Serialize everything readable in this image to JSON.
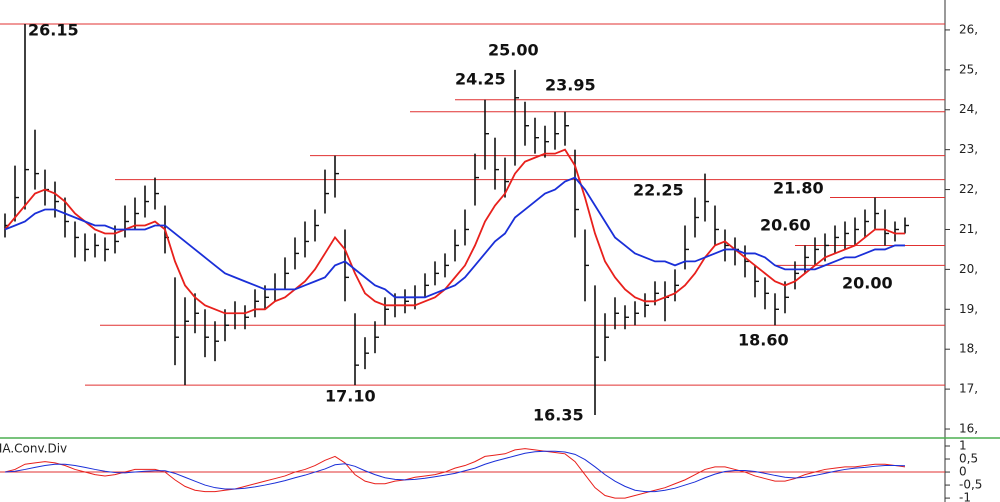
{
  "chart_data": [
    {
      "type": "ohlc",
      "high": [
        21.4,
        22.6,
        26.15,
        23.5,
        22.5,
        22.2,
        21.8,
        21.2,
        20.9,
        20.9,
        20.8,
        21.1,
        21.6,
        21.8,
        22.1,
        22.3,
        21.6,
        19.8,
        19.3,
        19.4,
        19.0,
        18.7,
        19.0,
        19.2,
        19.1,
        19.5,
        19.6,
        19.9,
        20.3,
        20.8,
        21.2,
        21.5,
        22.5,
        22.85,
        21.0,
        18.9,
        18.3,
        18.7,
        19.3,
        19.4,
        19.5,
        19.6,
        19.9,
        20.2,
        20.4,
        21.0,
        21.5,
        22.9,
        24.25,
        23.3,
        22.8,
        25.0,
        24.2,
        23.8,
        23.6,
        23.95,
        23.95,
        23.0,
        21.0,
        19.6,
        18.9,
        19.3,
        19.1,
        19.2,
        19.4,
        19.7,
        19.7,
        20.0,
        21.1,
        21.8,
        22.4,
        21.6,
        21.0,
        20.8,
        20.6,
        20.1,
        19.8,
        19.4,
        19.7,
        20.2,
        20.6,
        20.8,
        20.9,
        21.1,
        21.2,
        21.3,
        21.5,
        21.8,
        21.5,
        21.2,
        21.3
      ],
      "low": [
        20.8,
        21.2,
        21.5,
        22.0,
        21.6,
        21.3,
        20.8,
        20.3,
        20.2,
        20.3,
        20.2,
        20.4,
        20.8,
        21.0,
        21.3,
        21.5,
        20.4,
        17.6,
        17.1,
        18.4,
        17.8,
        17.7,
        18.2,
        18.5,
        18.5,
        18.8,
        19.0,
        19.2,
        19.5,
        20.0,
        20.3,
        20.7,
        21.4,
        21.8,
        19.2,
        17.1,
        17.5,
        17.9,
        18.6,
        18.8,
        18.9,
        19.0,
        19.3,
        19.6,
        19.8,
        20.2,
        20.6,
        21.6,
        22.5,
        22.0,
        21.8,
        22.6,
        23.1,
        22.9,
        22.8,
        23.0,
        23.1,
        20.8,
        19.2,
        16.35,
        17.7,
        18.5,
        18.5,
        18.6,
        18.8,
        19.1,
        18.7,
        19.2,
        20.0,
        20.8,
        21.2,
        20.6,
        20.2,
        20.1,
        19.8,
        19.3,
        19.0,
        18.6,
        18.9,
        19.5,
        19.9,
        20.1,
        20.2,
        20.4,
        20.5,
        20.6,
        20.8,
        21.0,
        20.6,
        20.7,
        20.9
      ],
      "close": [
        21.1,
        21.8,
        22.5,
        22.4,
        22.0,
        21.7,
        21.2,
        20.8,
        20.5,
        20.6,
        20.5,
        20.7,
        21.2,
        21.4,
        21.7,
        21.9,
        20.8,
        18.3,
        18.7,
        18.9,
        18.3,
        18.2,
        18.6,
        18.9,
        18.8,
        19.2,
        19.3,
        19.5,
        19.9,
        20.4,
        20.7,
        21.1,
        21.9,
        22.4,
        19.8,
        17.6,
        17.9,
        18.3,
        19.0,
        19.1,
        19.2,
        19.3,
        19.6,
        19.9,
        20.1,
        20.6,
        21.0,
        22.3,
        23.4,
        22.5,
        22.2,
        24.3,
        23.6,
        23.3,
        23.2,
        23.4,
        23.6,
        21.5,
        20.1,
        17.8,
        18.3,
        18.9,
        18.8,
        18.9,
        19.1,
        19.4,
        19.3,
        19.6,
        20.5,
        21.3,
        21.7,
        21.0,
        20.6,
        20.5,
        20.2,
        19.7,
        19.4,
        19.0,
        19.3,
        19.9,
        20.3,
        20.5,
        20.6,
        20.8,
        20.9,
        21.0,
        21.2,
        21.4,
        20.9,
        21.0,
        21.1
      ],
      "bar_color": "#111111",
      "series": [
        {
          "color": "#e8201c",
          "values": [
            21.0,
            21.3,
            21.6,
            21.9,
            22.0,
            21.9,
            21.7,
            21.4,
            21.2,
            21.0,
            20.9,
            20.9,
            21.0,
            21.1,
            21.1,
            21.2,
            21.0,
            20.2,
            19.6,
            19.3,
            19.1,
            19.0,
            18.9,
            18.9,
            18.9,
            19.0,
            19.0,
            19.2,
            19.3,
            19.5,
            19.7,
            20.0,
            20.4,
            20.8,
            20.5,
            19.9,
            19.4,
            19.2,
            19.1,
            19.1,
            19.1,
            19.1,
            19.2,
            19.3,
            19.5,
            19.8,
            20.1,
            20.6,
            21.2,
            21.6,
            21.9,
            22.4,
            22.7,
            22.8,
            22.9,
            22.9,
            23.0,
            22.6,
            21.8,
            20.9,
            20.2,
            19.8,
            19.5,
            19.3,
            19.2,
            19.2,
            19.3,
            19.4,
            19.6,
            19.9,
            20.3,
            20.6,
            20.7,
            20.5,
            20.3,
            20.1,
            19.9,
            19.7,
            19.6,
            19.7,
            19.9,
            20.1,
            20.3,
            20.4,
            20.5,
            20.6,
            20.8,
            21.0,
            21.0,
            20.9,
            20.9
          ]
        },
        {
          "color": "#1a2fd8",
          "values": [
            21.0,
            21.1,
            21.2,
            21.4,
            21.5,
            21.5,
            21.4,
            21.3,
            21.2,
            21.1,
            21.1,
            21.0,
            21.0,
            21.0,
            21.0,
            21.1,
            21.1,
            20.9,
            20.7,
            20.5,
            20.3,
            20.1,
            19.9,
            19.8,
            19.7,
            19.6,
            19.5,
            19.5,
            19.5,
            19.5,
            19.6,
            19.7,
            19.8,
            20.1,
            20.2,
            20.0,
            19.8,
            19.6,
            19.5,
            19.3,
            19.3,
            19.3,
            19.3,
            19.4,
            19.5,
            19.6,
            19.8,
            20.1,
            20.4,
            20.7,
            20.9,
            21.3,
            21.5,
            21.7,
            21.9,
            22.0,
            22.2,
            22.3,
            22.0,
            21.6,
            21.2,
            20.8,
            20.6,
            20.4,
            20.3,
            20.2,
            20.2,
            20.1,
            20.2,
            20.2,
            20.3,
            20.4,
            20.5,
            20.5,
            20.4,
            20.4,
            20.3,
            20.1,
            20.0,
            20.0,
            20.0,
            20.0,
            20.1,
            20.2,
            20.3,
            20.3,
            20.4,
            20.5,
            20.5,
            20.6,
            20.6
          ]
        }
      ],
      "levels": [
        26.15,
        24.25,
        23.95,
        22.85,
        22.25,
        21.8,
        20.6,
        20.1,
        18.6,
        17.1
      ],
      "level_color": "#e03030",
      "annotations": [
        "26.15",
        "25.00",
        "24.25",
        "23.95",
        "22.25",
        "21.80",
        "20.60",
        "20.00",
        "18.60",
        "17.10",
        "16.35"
      ],
      "ylim": [
        15.8,
        26.75
      ],
      "yticks": [
        {
          "value": 16,
          "label": "16,"
        },
        {
          "value": 17,
          "label": "17,"
        },
        {
          "value": 18,
          "label": "18,"
        },
        {
          "value": 19,
          "label": "19,"
        },
        {
          "value": 20,
          "label": "20,"
        },
        {
          "value": 21,
          "label": "21,"
        },
        {
          "value": 22,
          "label": "22,"
        },
        {
          "value": 23,
          "label": "23,"
        },
        {
          "value": 24,
          "label": "24,"
        },
        {
          "value": 25,
          "label": "25,"
        },
        {
          "value": 26,
          "label": "26,"
        }
      ]
    },
    {
      "type": "line",
      "title": "MA.Conv.Div",
      "series": [
        {
          "color": "#e8201c",
          "values": [
            0,
            0.1,
            0.3,
            0.35,
            0.4,
            0.35,
            0.25,
            0.1,
            0,
            -0.1,
            -0.15,
            -0.1,
            0,
            0.1,
            0.1,
            0.1,
            0,
            -0.3,
            -0.55,
            -0.7,
            -0.75,
            -0.75,
            -0.7,
            -0.65,
            -0.55,
            -0.45,
            -0.35,
            -0.25,
            -0.15,
            0,
            0.1,
            0.25,
            0.45,
            0.6,
            0.35,
            -0.1,
            -0.35,
            -0.45,
            -0.45,
            -0.35,
            -0.3,
            -0.2,
            -0.15,
            -0.1,
            0,
            0.15,
            0.25,
            0.4,
            0.6,
            0.65,
            0.7,
            0.85,
            0.9,
            0.85,
            0.8,
            0.75,
            0.7,
            0.4,
            -0.1,
            -0.6,
            -0.9,
            -1.0,
            -1.0,
            -0.9,
            -0.8,
            -0.7,
            -0.6,
            -0.45,
            -0.3,
            -0.1,
            0.1,
            0.2,
            0.2,
            0.1,
            0,
            -0.15,
            -0.25,
            -0.35,
            -0.35,
            -0.25,
            -0.1,
            0,
            0.1,
            0.15,
            0.2,
            0.2,
            0.25,
            0.3,
            0.3,
            0.25,
            0.2
          ]
        },
        {
          "color": "#1a2fd8",
          "values": [
            0,
            0.03,
            0.1,
            0.18,
            0.25,
            0.3,
            0.3,
            0.25,
            0.18,
            0.1,
            0.03,
            -0.02,
            -0.03,
            0,
            0.03,
            0.05,
            0.05,
            -0.05,
            -0.2,
            -0.35,
            -0.5,
            -0.6,
            -0.65,
            -0.65,
            -0.62,
            -0.57,
            -0.5,
            -0.42,
            -0.33,
            -0.22,
            -0.12,
            0,
            0.12,
            0.28,
            0.32,
            0.22,
            0.05,
            -0.1,
            -0.22,
            -0.28,
            -0.3,
            -0.28,
            -0.24,
            -0.18,
            -0.12,
            -0.05,
            0.05,
            0.15,
            0.3,
            0.42,
            0.52,
            0.62,
            0.72,
            0.78,
            0.8,
            0.8,
            0.77,
            0.68,
            0.48,
            0.2,
            -0.1,
            -0.35,
            -0.55,
            -0.7,
            -0.75,
            -0.75,
            -0.7,
            -0.62,
            -0.5,
            -0.38,
            -0.22,
            -0.08,
            0.02,
            0.06,
            0.06,
            0.02,
            -0.05,
            -0.13,
            -0.2,
            -0.23,
            -0.2,
            -0.13,
            -0.05,
            0.03,
            0.1,
            0.15,
            0.18,
            0.22,
            0.25,
            0.25,
            0.24
          ]
        }
      ],
      "levels": [
        0
      ],
      "level_color": "#e03030",
      "ylim": [
        -1.15,
        1.23
      ],
      "yticks": [
        {
          "value": 1,
          "label": "1"
        },
        {
          "value": 0.5,
          "label": "0,5"
        },
        0,
        {
          "value": -0.5,
          "label": "-0,5"
        },
        {
          "value": -1,
          "label": "-1"
        }
      ]
    }
  ]
}
